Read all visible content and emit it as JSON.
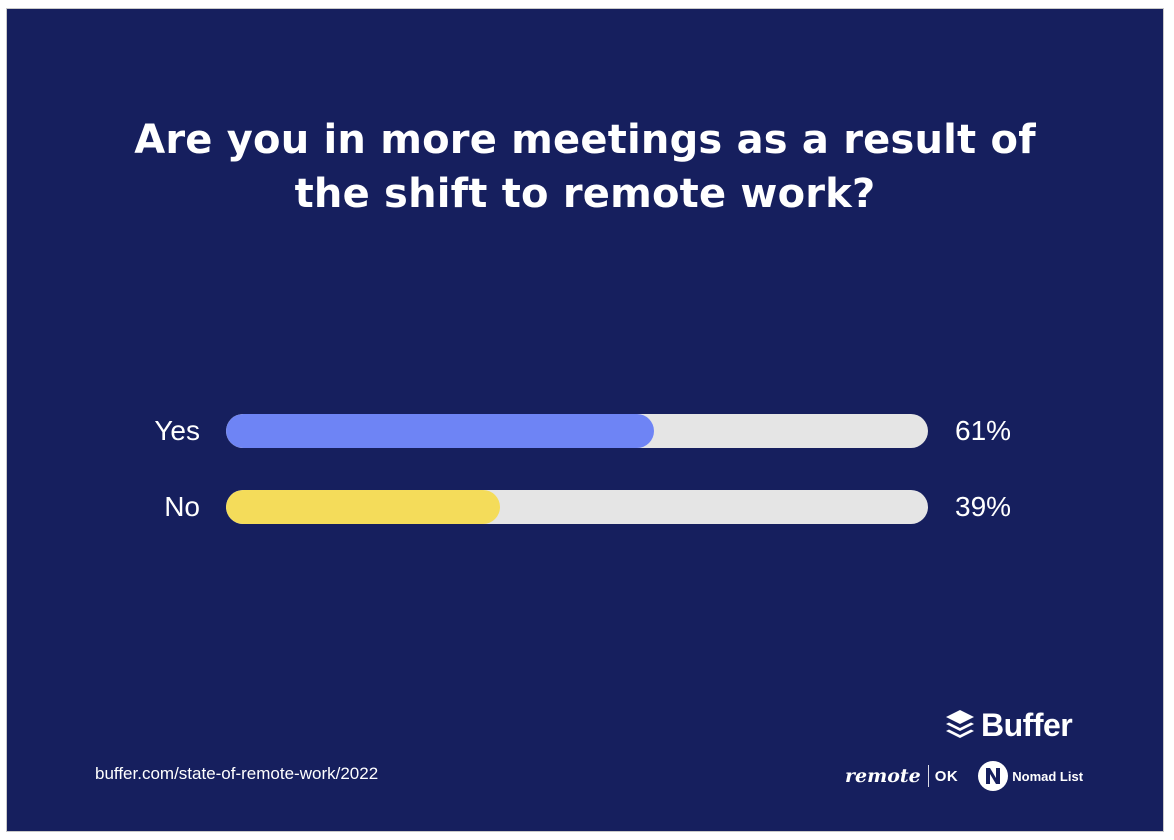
{
  "chart_data": {
    "type": "bar",
    "orientation": "horizontal",
    "title": "Are you in more meetings as a result of the shift to remote work?",
    "title_lines": [
      "Are you in more meetings as a result of",
      "the shift to remote work?"
    ],
    "categories": [
      "Yes",
      "No"
    ],
    "values": [
      61,
      39
    ],
    "value_labels": [
      "61%",
      "39%"
    ],
    "unit": "%",
    "xlim": [
      0,
      100
    ],
    "bar_colors": [
      "#6e84f5",
      "#f4dc5a"
    ],
    "track_color": "#e5e5e5",
    "background_color": "#161f5e",
    "grid": false,
    "legend": "none"
  },
  "footer": {
    "source_url": "buffer.com/state-of-remote-work/2022"
  },
  "logos": {
    "buffer": {
      "text": "Buffer",
      "icon": "buffer-layers-icon"
    },
    "remoteok": {
      "remote_text": "remote",
      "ok_text": "OK"
    },
    "nomadlist": {
      "text": "Nomad List",
      "icon": "nomad-list-n-icon"
    }
  }
}
